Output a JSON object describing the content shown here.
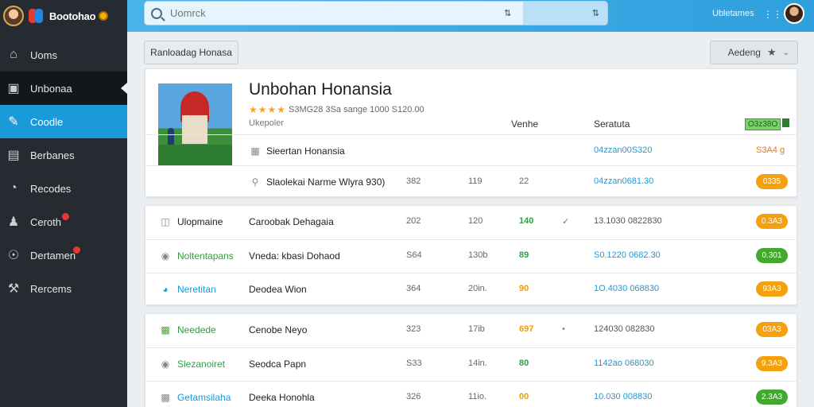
{
  "sidebar": {
    "brand": "Bootohao",
    "items": [
      {
        "label": "Uoms",
        "icon": "home-icon"
      },
      {
        "label": "Unbonaa",
        "icon": "inbox-icon"
      },
      {
        "label": "Coodle",
        "icon": "document-icon"
      },
      {
        "label": "Berbanes",
        "icon": "folder-icon"
      },
      {
        "label": "Recodes",
        "icon": "pie-chart-icon"
      },
      {
        "label": "Ceroth",
        "icon": "users-icon"
      },
      {
        "label": "Dertamen",
        "icon": "globe-icon"
      },
      {
        "label": "Rercems",
        "icon": "tools-icon"
      }
    ]
  },
  "topbar": {
    "search_placeholder": "Uomrck",
    "link": "Ubletames",
    "grid_icon": "apps-icon",
    "avatar": "user-avatar"
  },
  "toolbar": {
    "download_label": "Ranloadag Honasa",
    "sort_label": "Aedeng"
  },
  "hero": {
    "title": "Unbohan Honansia",
    "stars": "★★★★",
    "rating_text": "S3MG28 3Sa sange 1000 S120.00",
    "label_head": "Ukepoler",
    "vendor_head": "Venhe",
    "status_head": "Seratuta",
    "total_head": "O3z38O"
  },
  "rows": [
    {
      "name": "Sieertan Honansia",
      "icon": "grid-icon",
      "desc": "",
      "c1": "",
      "c2": "",
      "c3": "",
      "code": "04zzan00S320",
      "amount": "S3A4 g"
    },
    {
      "name": "Slaolekai Narme Wlyra 930)",
      "icon": "key-icon",
      "desc": "",
      "c1": "382",
      "c2": "119",
      "c3": "22",
      "code": "04zzan0681.30",
      "pill": "0335"
    },
    {
      "name": "Ulopmaine",
      "icon": "bag-icon",
      "desc": "Caroobak Dehagaia",
      "c1": "202",
      "c2": "120",
      "c3": "140",
      "tick": "✓",
      "code": "13.1030 0822830",
      "pill": "0.3A3"
    },
    {
      "name": "Noltentapans",
      "icon": "target-icon",
      "desc": "Vneda: kbasi Dohaod",
      "c1": "S64",
      "c2": "130b",
      "c3": "89",
      "code": "S0.1220 0682.30",
      "pill": "0.301"
    },
    {
      "name": "Neretitan",
      "icon": "circle-icon",
      "desc": "Deodea Wion",
      "c1": "364",
      "c2": "20in.",
      "c3": "90",
      "code": "1O.4030 068830",
      "pill": "93A3"
    },
    {
      "name": "Needede",
      "icon": "doc-icon",
      "desc": "Cenobe Neyo",
      "c1": "323",
      "c2": "17ib",
      "c3": "697",
      "tick": "•",
      "code": "124030 082830",
      "pill": "03A3"
    },
    {
      "name": "Slezanoiret",
      "icon": "record-icon",
      "desc": "Seodca Papn",
      "c1": "S33",
      "c2": "14in.",
      "c3": "80",
      "code": "1142ao 068030",
      "pill": "9.3A3"
    },
    {
      "name": "Getamsilaha",
      "icon": "file-icon",
      "desc": "Deeka Honohla",
      "c1": "326",
      "c2": "11io.",
      "c3": "00",
      "code": "10.030 008830",
      "pill": "2.3A3"
    }
  ]
}
